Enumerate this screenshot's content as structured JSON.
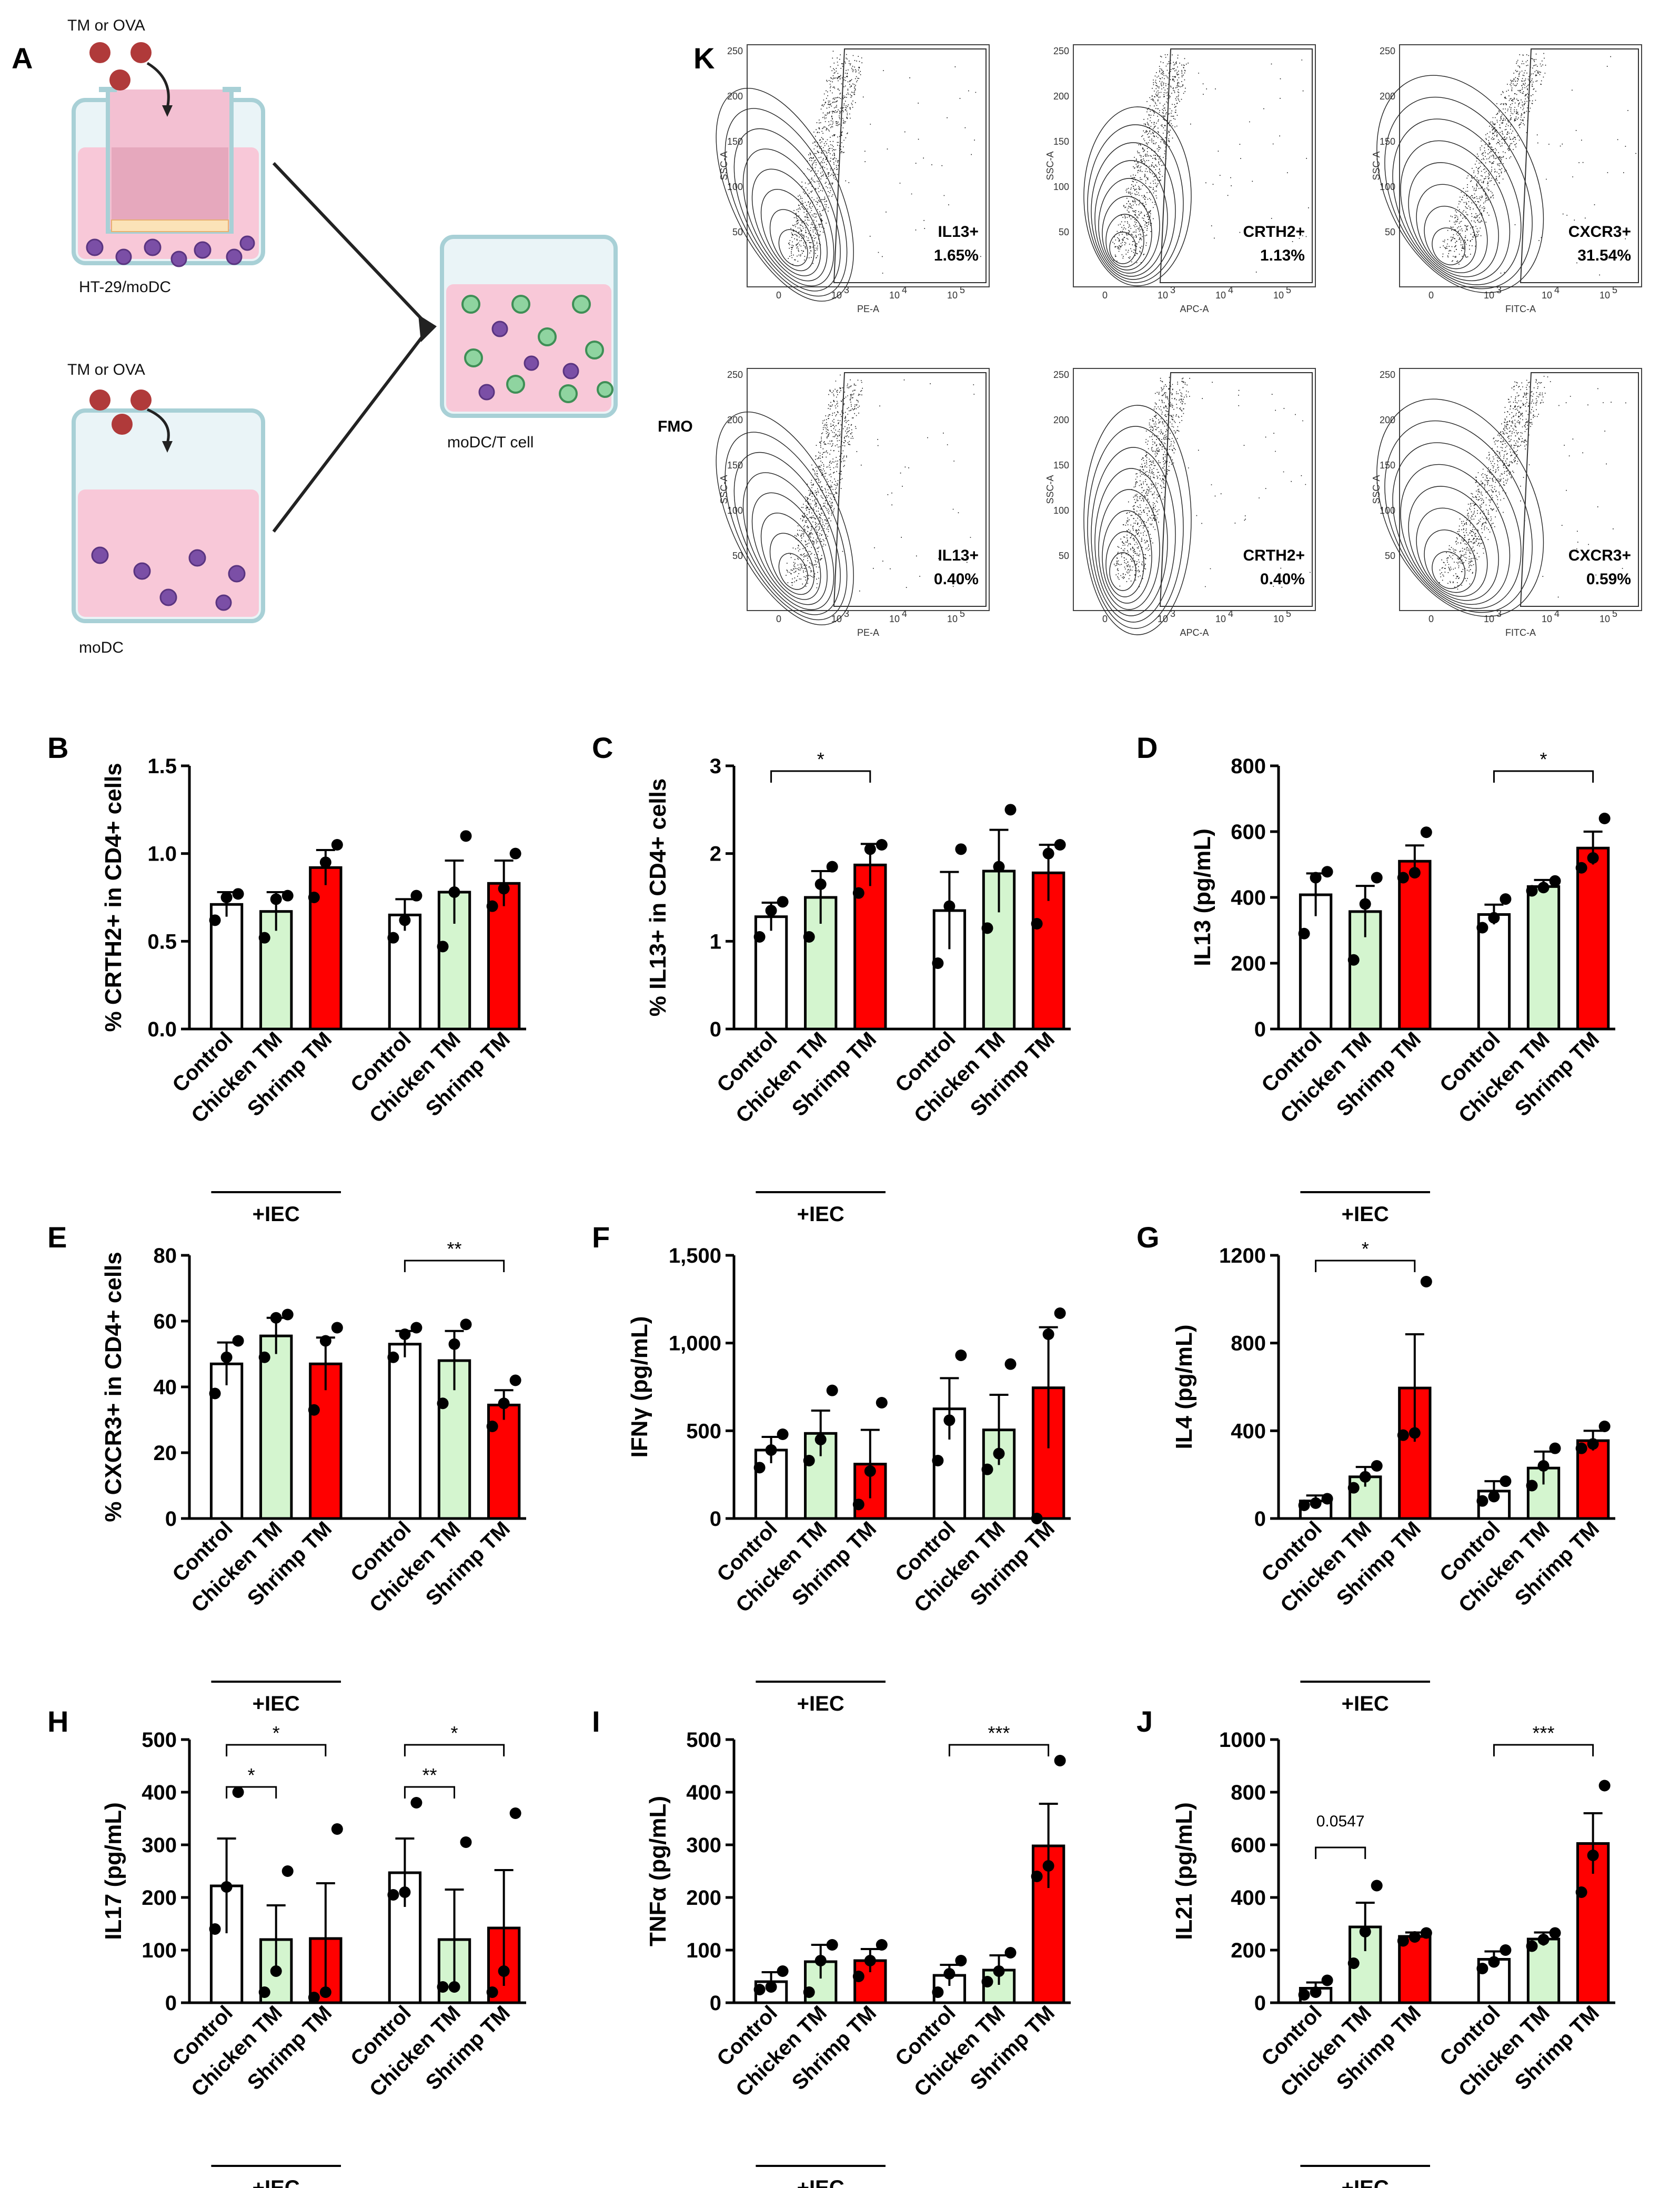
{
  "panel_a": {
    "label": "A",
    "top_agent": "TM or OVA",
    "bottom_agent": "TM or OVA",
    "top_well": "HT-29/moDC",
    "bottom_well": "moDC",
    "target_well": "moDC/T cell"
  },
  "panel_k": {
    "label": "K",
    "fmo_label": "FMO",
    "plots": [
      {
        "row": "sample",
        "gate": "IL13+",
        "pct": "1.65%",
        "xaxis": "PE-A"
      },
      {
        "row": "sample",
        "gate": "CRTH2+",
        "pct": "1.13%",
        "xaxis": "APC-A"
      },
      {
        "row": "sample",
        "gate": "CXCR3+",
        "pct": "31.54%",
        "xaxis": "FITC-A"
      },
      {
        "row": "fmo",
        "gate": "IL13+",
        "pct": "0.40%",
        "xaxis": "PE-A"
      },
      {
        "row": "fmo",
        "gate": "CRTH2+",
        "pct": "0.40%",
        "xaxis": "APC-A"
      },
      {
        "row": "fmo",
        "gate": "CXCR3+",
        "pct": "0.59%",
        "xaxis": "FITC-A"
      }
    ],
    "yaxis": "SSC-A",
    "y_ticks": [
      "250",
      "200",
      "150",
      "100",
      "50"
    ],
    "x_ticks": [
      "0",
      "10",
      "10",
      "10"
    ],
    "x_tick_exps": [
      "",
      "3",
      "4",
      "5"
    ]
  },
  "chart_data": [
    {
      "id": "B",
      "type": "bar",
      "title": "",
      "ylabel": "% CRTH2+ in CD4+ cells",
      "categories": [
        "Control",
        "Chicken TM",
        "Shrimp TM",
        "Control",
        "Chicken TM",
        "Shrimp TM"
      ],
      "ylim": [
        0,
        1.5
      ],
      "yticks": [
        0,
        0.5,
        1.0,
        1.5
      ],
      "ytick_labels": [
        "0.0",
        "0.5",
        "1.0",
        "1.5"
      ],
      "values": [
        0.71,
        0.67,
        0.92,
        0.65,
        0.78,
        0.83
      ],
      "sem": [
        0.07,
        0.11,
        0.1,
        0.09,
        0.18,
        0.13
      ],
      "points": [
        [
          0.62,
          0.75,
          0.77
        ],
        [
          0.52,
          0.74,
          0.76
        ],
        [
          0.75,
          0.95,
          1.05
        ],
        [
          0.52,
          0.62,
          0.76
        ],
        [
          0.47,
          0.78,
          1.1
        ],
        [
          0.7,
          0.8,
          1.0
        ]
      ],
      "group_label": "+IEC",
      "significance": []
    },
    {
      "id": "C",
      "type": "bar",
      "title": "",
      "ylabel": "% IL13+ in CD4+ cells",
      "categories": [
        "Control",
        "Chicken TM",
        "Shrimp TM",
        "Control",
        "Chicken TM",
        "Shrimp TM"
      ],
      "ylim": [
        0,
        3
      ],
      "yticks": [
        0,
        1,
        2,
        3
      ],
      "ytick_labels": [
        "0",
        "1",
        "2",
        "3"
      ],
      "values": [
        1.28,
        1.5,
        1.87,
        1.35,
        1.8,
        1.78
      ],
      "sem": [
        0.16,
        0.3,
        0.24,
        0.44,
        0.47,
        0.32
      ],
      "points": [
        [
          1.05,
          1.35,
          1.45
        ],
        [
          1.05,
          1.65,
          1.85
        ],
        [
          1.55,
          2.05,
          2.1
        ],
        [
          0.75,
          1.4,
          2.05
        ],
        [
          1.15,
          1.85,
          2.5
        ],
        [
          1.2,
          2.0,
          2.1
        ]
      ],
      "group_label": "+IEC",
      "significance": [
        {
          "from": 0,
          "to": 2,
          "label": "*"
        }
      ]
    },
    {
      "id": "D",
      "type": "bar",
      "title": "",
      "ylabel": "IL13 (pg/mL)",
      "categories": [
        "Control",
        "Chicken TM",
        "Shrimp TM",
        "Control",
        "Chicken TM",
        "Shrimp TM"
      ],
      "ylim": [
        0,
        800
      ],
      "yticks": [
        0,
        200,
        400,
        600,
        800
      ],
      "ytick_labels": [
        "0",
        "200",
        "400",
        "600",
        "800"
      ],
      "values": [
        408,
        357,
        510,
        348,
        433,
        550
      ],
      "sem": [
        65,
        78,
        48,
        30,
        20,
        50
      ],
      "points": [
        [
          290,
          460,
          478
        ],
        [
          210,
          380,
          460
        ],
        [
          460,
          475,
          598
        ],
        [
          308,
          338,
          395
        ],
        [
          420,
          430,
          450
        ],
        [
          490,
          520,
          640
        ]
      ],
      "group_label": "+IEC",
      "significance": [
        {
          "from": 3,
          "to": 5,
          "label": "*"
        }
      ]
    },
    {
      "id": "E",
      "type": "bar",
      "title": "",
      "ylabel": "% CXCR3+ in CD4+ cells",
      "categories": [
        "Control",
        "Chicken TM",
        "Shrimp TM",
        "Control",
        "Chicken TM",
        "Shrimp TM"
      ],
      "ylim": [
        0,
        80
      ],
      "yticks": [
        0,
        20,
        40,
        60,
        80
      ],
      "ytick_labels": [
        "0",
        "20",
        "40",
        "60",
        "80"
      ],
      "values": [
        47,
        55.5,
        47,
        53,
        48,
        34.5
      ],
      "sem": [
        6.5,
        5.5,
        8,
        4,
        9,
        4.5
      ],
      "points": [
        [
          38,
          49,
          54
        ],
        [
          49,
          61,
          62
        ],
        [
          33,
          54,
          58
        ],
        [
          49,
          56,
          58
        ],
        [
          35,
          53,
          59
        ],
        [
          28,
          35,
          42
        ]
      ],
      "group_label": "+IEC",
      "significance": [
        {
          "from": 3,
          "to": 5,
          "label": "**"
        }
      ]
    },
    {
      "id": "F",
      "type": "bar",
      "title": "",
      "ylabel": "IFNγ (pg/mL)",
      "categories": [
        "Control",
        "Chicken TM",
        "Shrimp TM",
        "Control",
        "Chicken TM",
        "Shrimp TM"
      ],
      "ylim": [
        0,
        1500
      ],
      "yticks": [
        0,
        500,
        1000,
        1500
      ],
      "ytick_labels": [
        "0",
        "500",
        "1,000",
        "1,500"
      ],
      "values": [
        390,
        485,
        310,
        625,
        505,
        745
      ],
      "sem": [
        75,
        130,
        195,
        175,
        200,
        345
      ],
      "points": [
        [
          290,
          390,
          480
        ],
        [
          330,
          450,
          730
        ],
        [
          80,
          270,
          660
        ],
        [
          330,
          560,
          930
        ],
        [
          280,
          370,
          880
        ],
        [
          0,
          1050,
          1170
        ]
      ],
      "group_label": "+IEC",
      "significance": []
    },
    {
      "id": "G",
      "type": "bar",
      "title": "",
      "ylabel": "IL4 (pg/mL)",
      "categories": [
        "Control",
        "Chicken TM",
        "Shrimp TM",
        "Control",
        "Chicken TM",
        "Shrimp TM"
      ],
      "ylim": [
        0,
        1200
      ],
      "yticks": [
        0,
        400,
        800,
        1200
      ],
      "ytick_labels": [
        "0",
        "400",
        "800",
        "1200"
      ],
      "values": [
        80,
        190,
        595,
        125,
        230,
        355
      ],
      "sem": [
        25,
        45,
        245,
        45,
        75,
        45
      ],
      "points": [
        [
          60,
          70,
          90
        ],
        [
          140,
          190,
          240
        ],
        [
          380,
          390,
          1080
        ],
        [
          80,
          100,
          170
        ],
        [
          150,
          240,
          320
        ],
        [
          320,
          340,
          420
        ]
      ],
      "group_label": "+IEC",
      "significance": [
        {
          "from": 0,
          "to": 2,
          "label": "*"
        }
      ]
    },
    {
      "id": "H",
      "type": "bar",
      "title": "",
      "ylabel": "IL17 (pg/mL)",
      "categories": [
        "Control",
        "Chicken TM",
        "Shrimp TM",
        "Control",
        "Chicken TM",
        "Shrimp TM"
      ],
      "ylim": [
        0,
        500
      ],
      "yticks": [
        0,
        100,
        200,
        300,
        400,
        500
      ],
      "ytick_labels": [
        "0",
        "100",
        "200",
        "300",
        "400",
        "500"
      ],
      "values": [
        222,
        120,
        122,
        247,
        120,
        142
      ],
      "sem": [
        90,
        65,
        105,
        65,
        95,
        110
      ],
      "points": [
        [
          140,
          220,
          400
        ],
        [
          20,
          60,
          250
        ],
        [
          10,
          20,
          330
        ],
        [
          205,
          210,
          380
        ],
        [
          30,
          30,
          305
        ],
        [
          20,
          60,
          360
        ]
      ],
      "group_label": "+IEC",
      "significance": [
        {
          "from": 0,
          "to": 1,
          "label": "*"
        },
        {
          "from": 0,
          "to": 2,
          "label": "*"
        },
        {
          "from": 3,
          "to": 4,
          "label": "**"
        },
        {
          "from": 3,
          "to": 5,
          "label": "*"
        }
      ]
    },
    {
      "id": "I",
      "type": "bar",
      "title": "",
      "ylabel": "TNFα (pg/mL)",
      "categories": [
        "Control",
        "Chicken TM",
        "Shrimp TM",
        "Control",
        "Chicken TM",
        "Shrimp TM"
      ],
      "ylim": [
        0,
        500
      ],
      "yticks": [
        0,
        100,
        200,
        300,
        400,
        500
      ],
      "ytick_labels": [
        "0",
        "100",
        "200",
        "300",
        "400",
        "500"
      ],
      "values": [
        40,
        78,
        80,
        52,
        62,
        298
      ],
      "sem": [
        18,
        32,
        22,
        20,
        28,
        80
      ],
      "points": [
        [
          25,
          30,
          60
        ],
        [
          20,
          80,
          110
        ],
        [
          50,
          80,
          110
        ],
        [
          20,
          55,
          80
        ],
        [
          40,
          60,
          95
        ],
        [
          240,
          260,
          460
        ]
      ],
      "group_label": "+IEC",
      "significance": [
        {
          "from": 3,
          "to": 5,
          "label": "***"
        }
      ]
    },
    {
      "id": "J",
      "type": "bar",
      "title": "",
      "ylabel": "IL21 (pg/mL)",
      "categories": [
        "Control",
        "Chicken TM",
        "Shrimp TM",
        "Control",
        "Chicken TM",
        "Shrimp TM"
      ],
      "ylim": [
        0,
        1000
      ],
      "yticks": [
        0,
        200,
        400,
        600,
        800,
        1000
      ],
      "ytick_labels": [
        "0",
        "200",
        "400",
        "600",
        "800",
        "1000"
      ],
      "values": [
        55,
        288,
        252,
        165,
        242,
        605
      ],
      "sem": [
        22,
        92,
        15,
        30,
        25,
        115
      ],
      "points": [
        [
          30,
          40,
          85
        ],
        [
          150,
          270,
          445
        ],
        [
          235,
          250,
          265
        ],
        [
          130,
          155,
          200
        ],
        [
          215,
          240,
          265
        ],
        [
          420,
          560,
          825
        ]
      ],
      "group_label": "+IEC",
      "significance": [
        {
          "from": 0,
          "to": 1,
          "label": "0.0547"
        },
        {
          "from": 3,
          "to": 5,
          "label": "***"
        }
      ]
    }
  ],
  "colors": {
    "control": "#ffffff",
    "chicken": "#d4f5cf",
    "shrimp": "#ff0000",
    "outline": "#000000",
    "well_pink": "#f8c8d8",
    "cell_purple": "#7b4fa6",
    "tcell_green": "#8fd4a0",
    "virus_red": "#b03a3a"
  }
}
